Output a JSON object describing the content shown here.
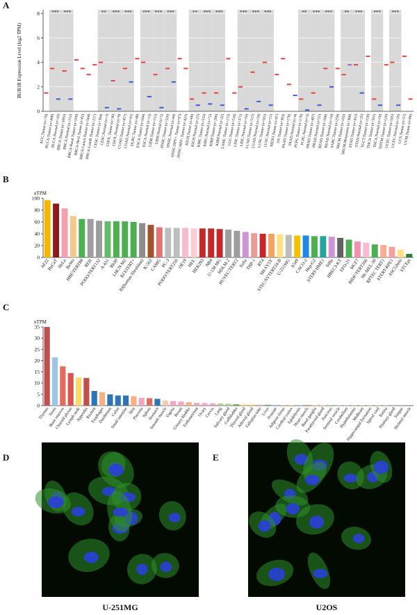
{
  "panels": {
    "labels": [
      "A",
      "B",
      "C",
      "D",
      "E"
    ]
  },
  "images": [
    {
      "label": "U-251MG"
    },
    {
      "label": "U2OS"
    }
  ],
  "chart_data": [
    {
      "type": "box",
      "ylabel": "BUB1B Expression Level (log2 TPM)",
      "categories": [
        "ACC.Tumor (n=79)",
        "BLCA.Tumor (n=408)",
        "BLCA.Normal (n=19)",
        "BRCA.Tumor (n=1093)",
        "BRCA.Normal (n=112)",
        "BRCA-Basal.Tumor (n=190)",
        "BRCA-Her2.Tumor (n=82)",
        "BRCA-LumA.Tumor (n=564)",
        "BRCA-LumB.Tumor (n=217)",
        "CESC.Tumor (n=304)",
        "CESC.Normal (n=3)",
        "CHOL.Tumor (n=36)",
        "CHOL.Normal (n=9)",
        "COAD.Tumor (n=457)",
        "COAD.Normal (n=41)",
        "DLBC.Tumor (n=48)",
        "ESCA.Tumor (n=184)",
        "ESCA.Normal (n=11)",
        "GBM.Tumor (n=153)",
        "GBM.Normal (n=5)",
        "HNSC.Tumor (n=520)",
        "HNSC.Normal (n=44)",
        "HNSC-HPV+.Tumor (n=97)",
        "HNSC-HPV-.Tumor (n=421)",
        "KICH.Tumor (n=66)",
        "KICH.Normal (n=25)",
        "KIRC.Tumor (n=533)",
        "KIRC.Normal (n=72)",
        "KIRP.Tumor (n=290)",
        "KIRP.Normal (n=32)",
        "LAML.Tumor (n=173)",
        "LGG.Tumor (n=516)",
        "LIHC.Tumor (n=371)",
        "LIHC.Normal (n=50)",
        "LUAD.Tumor (n=515)",
        "LUAD.Normal (n=59)",
        "LUSC.Tumor (n=501)",
        "LUSC.Normal (n=51)",
        "MESO.Tumor (n=87)",
        "OV.Tumor (n=303)",
        "PAAD.Tumor (n=178)",
        "PAAD.Normal (n=4)",
        "PCPG.Tumor (n=179)",
        "PCPG.Normal (n=3)",
        "PRAD.Tumor (n=497)",
        "PRAD.Normal (n=52)",
        "READ.Tumor (n=166)",
        "READ.Normal (n=10)",
        "SARC.Tumor (n=259)",
        "SKCM.Tumor (n=103)",
        "SKCM.Metastasis (n=368)",
        "STAD.Tumor (n=415)",
        "STAD.Normal (n=35)",
        "TGCT.Tumor (n=150)",
        "THCA.Tumor (n=501)",
        "THCA.Normal (n=59)",
        "THYM.Tumor (n=120)",
        "UCEC.Tumor (n=545)",
        "UCEC.Normal (n=35)",
        "UCS.Tumor (n=57)",
        "UVM.Tumor (n=80)"
      ],
      "values": [
        1.5,
        3.5,
        1.0,
        3.3,
        1.0,
        4.2,
        3.5,
        3.0,
        3.8,
        4.0,
        0.3,
        2.5,
        0.2,
        3.5,
        2.4,
        4.3,
        4.0,
        1.2,
        3.0,
        0.3,
        3.5,
        2.4,
        4.3,
        3.5,
        1.0,
        0.5,
        1.5,
        0.6,
        1.5,
        0.5,
        4.3,
        1.5,
        2.0,
        0.2,
        3.2,
        0.8,
        4.0,
        0.5,
        3.0,
        4.3,
        2.2,
        1.3,
        1.0,
        0.1,
        1.5,
        0.5,
        3.5,
        2.0,
        3.5,
        3.0,
        3.8,
        3.8,
        1.5,
        4.5,
        1.0,
        0.5,
        3.8,
        4.0,
        0.5,
        4.5,
        1.0
      ],
      "colors": [
        "#e8433a",
        "#e8433a",
        "#3a5bd9",
        "#e8433a",
        "#3a5bd9",
        "#e8433a",
        "#e8433a",
        "#e8433a",
        "#e8433a",
        "#e8433a",
        "#3a5bd9",
        "#e8433a",
        "#3a5bd9",
        "#e8433a",
        "#3a5bd9",
        "#e8433a",
        "#e8433a",
        "#3a5bd9",
        "#e8433a",
        "#3a5bd9",
        "#e8433a",
        "#3a5bd9",
        "#e8433a",
        "#e8433a",
        "#e8433a",
        "#3a5bd9",
        "#e8433a",
        "#3a5bd9",
        "#e8433a",
        "#3a5bd9",
        "#e8433a",
        "#e8433a",
        "#e8433a",
        "#3a5bd9",
        "#e8433a",
        "#3a5bd9",
        "#e8433a",
        "#3a5bd9",
        "#e8433a",
        "#e8433a",
        "#e8433a",
        "#3a5bd9",
        "#e8433a",
        "#3a5bd9",
        "#e8433a",
        "#3a5bd9",
        "#e8433a",
        "#3a5bd9",
        "#e8433a",
        "#e8433a",
        "#a06ad0",
        "#e8433a",
        "#3a5bd9",
        "#e8433a",
        "#e8433a",
        "#3a5bd9",
        "#e8433a",
        "#e8433a",
        "#3a5bd9",
        "#e8433a",
        "#e8433a"
      ],
      "significance": [
        null,
        "***",
        null,
        "***",
        null,
        null,
        null,
        null,
        null,
        "**",
        null,
        "***",
        null,
        "***",
        null,
        null,
        "***",
        null,
        "***",
        null,
        "***",
        null,
        null,
        null,
        "**",
        null,
        "***",
        null,
        "***",
        null,
        null,
        null,
        "***",
        null,
        "***",
        null,
        "***",
        null,
        null,
        null,
        null,
        null,
        "**",
        null,
        "***",
        null,
        "***",
        null,
        null,
        "**",
        null,
        "***",
        null,
        null,
        "***",
        null,
        null,
        "***",
        null,
        null,
        null
      ],
      "ylim": [
        0,
        8.3
      ],
      "yticks": [
        0,
        2,
        4,
        6,
        8
      ],
      "grid": true
    },
    {
      "type": "bar",
      "ylabel": "nTPM",
      "categories": [
        "AF22",
        "HaCaT",
        "HeLa",
        "BeWo",
        "HBF/TERT88",
        "REH",
        "PODO/TERT132",
        "A-431",
        "Rh30",
        "LHCN-M2",
        "BJ hTERT+",
        "BJ(human fibroblast)",
        "K-562",
        "CAMG",
        "PC-3",
        "PODO/TERT256",
        "OE19",
        "HEL",
        "HEK293",
        "NB4",
        "U-138 MG",
        "HDLM-2",
        "HUVEC/TERT2",
        "SuSa",
        "THP-1",
        "RT4",
        "SH-SY5Y",
        "hTEC/SVTERT24-B",
        "U-251MG",
        "A549",
        "CACO-2",
        "Hep-G2",
        "hTERT-HME1",
        "SiHa",
        "HBEC3-KT",
        "EFO-21",
        "MCF7",
        "fHDF/TERT166",
        "SK-MEL-30",
        "RPTEC TERT1",
        "hTERT-RPE1",
        "ASC52telo",
        "hTCEpi"
      ],
      "values": [
        97,
        91,
        83,
        70,
        65,
        65,
        62,
        61,
        61,
        61,
        60,
        58,
        55,
        51,
        50,
        50,
        50,
        49,
        49,
        49,
        48,
        47,
        45,
        43,
        41,
        40,
        40,
        39,
        38,
        37,
        37,
        36,
        36,
        35,
        33,
        30,
        27,
        25,
        22,
        21,
        18,
        13,
        6
      ],
      "colors": [
        "#f5b800",
        "#8b1a1a",
        "#f4a0b0",
        "#f6c88a",
        "#4caf50",
        "#9e9e9e",
        "#9c9c9c",
        "#66bb6a",
        "#4caf50",
        "#4caf50",
        "#4caf50",
        "#8e8e8e",
        "#a0522d",
        "#e57373",
        "#bdbdbd",
        "#bdbdbd",
        "#f8bbd0",
        "#ffcdd2",
        "#c62828",
        "#c62828",
        "#c62828",
        "#9e9e9e",
        "#9e9e9e",
        "#ce93d8",
        "#ef9a9a",
        "#c62828",
        "#f4a460",
        "#ffe082",
        "#bdbdbd",
        "#f5c200",
        "#1e88e5",
        "#4caf50",
        "#26a69a",
        "#ce93d8",
        "#616161",
        "#4caf50",
        "#f48fb1",
        "#f8bbd0",
        "#4caf50",
        "#ffab91",
        "#f4a0a0",
        "#ffe082",
        "#2e7d32"
      ],
      "ylim": [
        0,
        100
      ],
      "yticks": [
        0,
        20,
        40,
        60,
        80,
        100
      ]
    },
    {
      "type": "bar",
      "ylabel": "nTPM",
      "categories": [
        "Thymus",
        "Testis",
        "Bone marrow",
        "Choroid plexus",
        "Lymph node",
        "Appendix",
        "Rectum",
        "Esophagus",
        "Duodenum",
        "Colon",
        "Small intestine",
        "Skin",
        "Placenta",
        "Spleen",
        "Stomach",
        "Smooth muscle",
        "Vagina",
        "Breast",
        "Urinary bladder",
        "Endometrium",
        "Ovary",
        "Cervix",
        "Lung",
        "Salivary gland",
        "Gallbladder",
        "Thyroid gland",
        "Adrenal gland",
        "Fallopian tube",
        "Liver",
        "Prostate",
        "Adipose tissue",
        "Cerebral cortex",
        "Epididymis",
        "Heart muscle",
        "Basal ganglia",
        "Parathyroid gland",
        "Pancreas",
        "Seminal vesicle",
        "Cerebellum",
        "Hypothalamus",
        "Midbrain",
        "Hippocampal formation",
        "Spinal cord",
        "Retina",
        "Pituitary gland",
        "Tongue",
        "Skeletal muscle"
      ],
      "values": [
        35,
        21.5,
        17.5,
        14.5,
        12.5,
        12.3,
        6.5,
        6.0,
        5.0,
        4.5,
        4.5,
        4.2,
        3.5,
        3.3,
        3.0,
        2.3,
        2.0,
        1.8,
        1.5,
        1.2,
        1.1,
        1.0,
        0.9,
        0.8,
        0.6,
        0.5,
        0.5,
        0.4,
        0.4,
        0.35,
        0.3,
        0.3,
        0.25,
        0.2,
        0.2,
        0.2,
        0.15,
        0.15,
        0.1,
        0.1,
        0.1,
        0.1,
        0.1,
        0.1,
        0.05,
        0.05,
        0.05
      ],
      "colors": [
        "#c0504d",
        "#9dc3e6",
        "#e46c5a",
        "#d9534f",
        "#ffd966",
        "#c0504d",
        "#2e75b6",
        "#f4b183",
        "#2e75b6",
        "#2e75b6",
        "#2e75b6",
        "#f4b183",
        "#f4a6c0",
        "#e46c5a",
        "#2e75b6",
        "#f8cbad",
        "#f4a6c0",
        "#f4a6c0",
        "#f4b183",
        "#f4a6c0",
        "#f4a6c0",
        "#f4a6c0",
        "#a9d18e",
        "#a9d18e",
        "#70ad47",
        "#ffd966",
        "#ffd966",
        "#f4a6c0",
        "#70ad47",
        "#9dc3e6",
        "#f8cbad",
        "#ffd966",
        "#9dc3e6",
        "#c55a11",
        "#ffd966",
        "#ffd966",
        "#70ad47",
        "#9dc3e6",
        "#ffd966",
        "#ffd966",
        "#ffd966",
        "#ffd966",
        "#ffd966",
        "#ffd966",
        "#ffd966",
        "#f4b183",
        "#c55a11"
      ],
      "ylim": [
        0,
        35
      ],
      "yticks": [
        0,
        5,
        10,
        15,
        20,
        25,
        30,
        35
      ]
    }
  ]
}
